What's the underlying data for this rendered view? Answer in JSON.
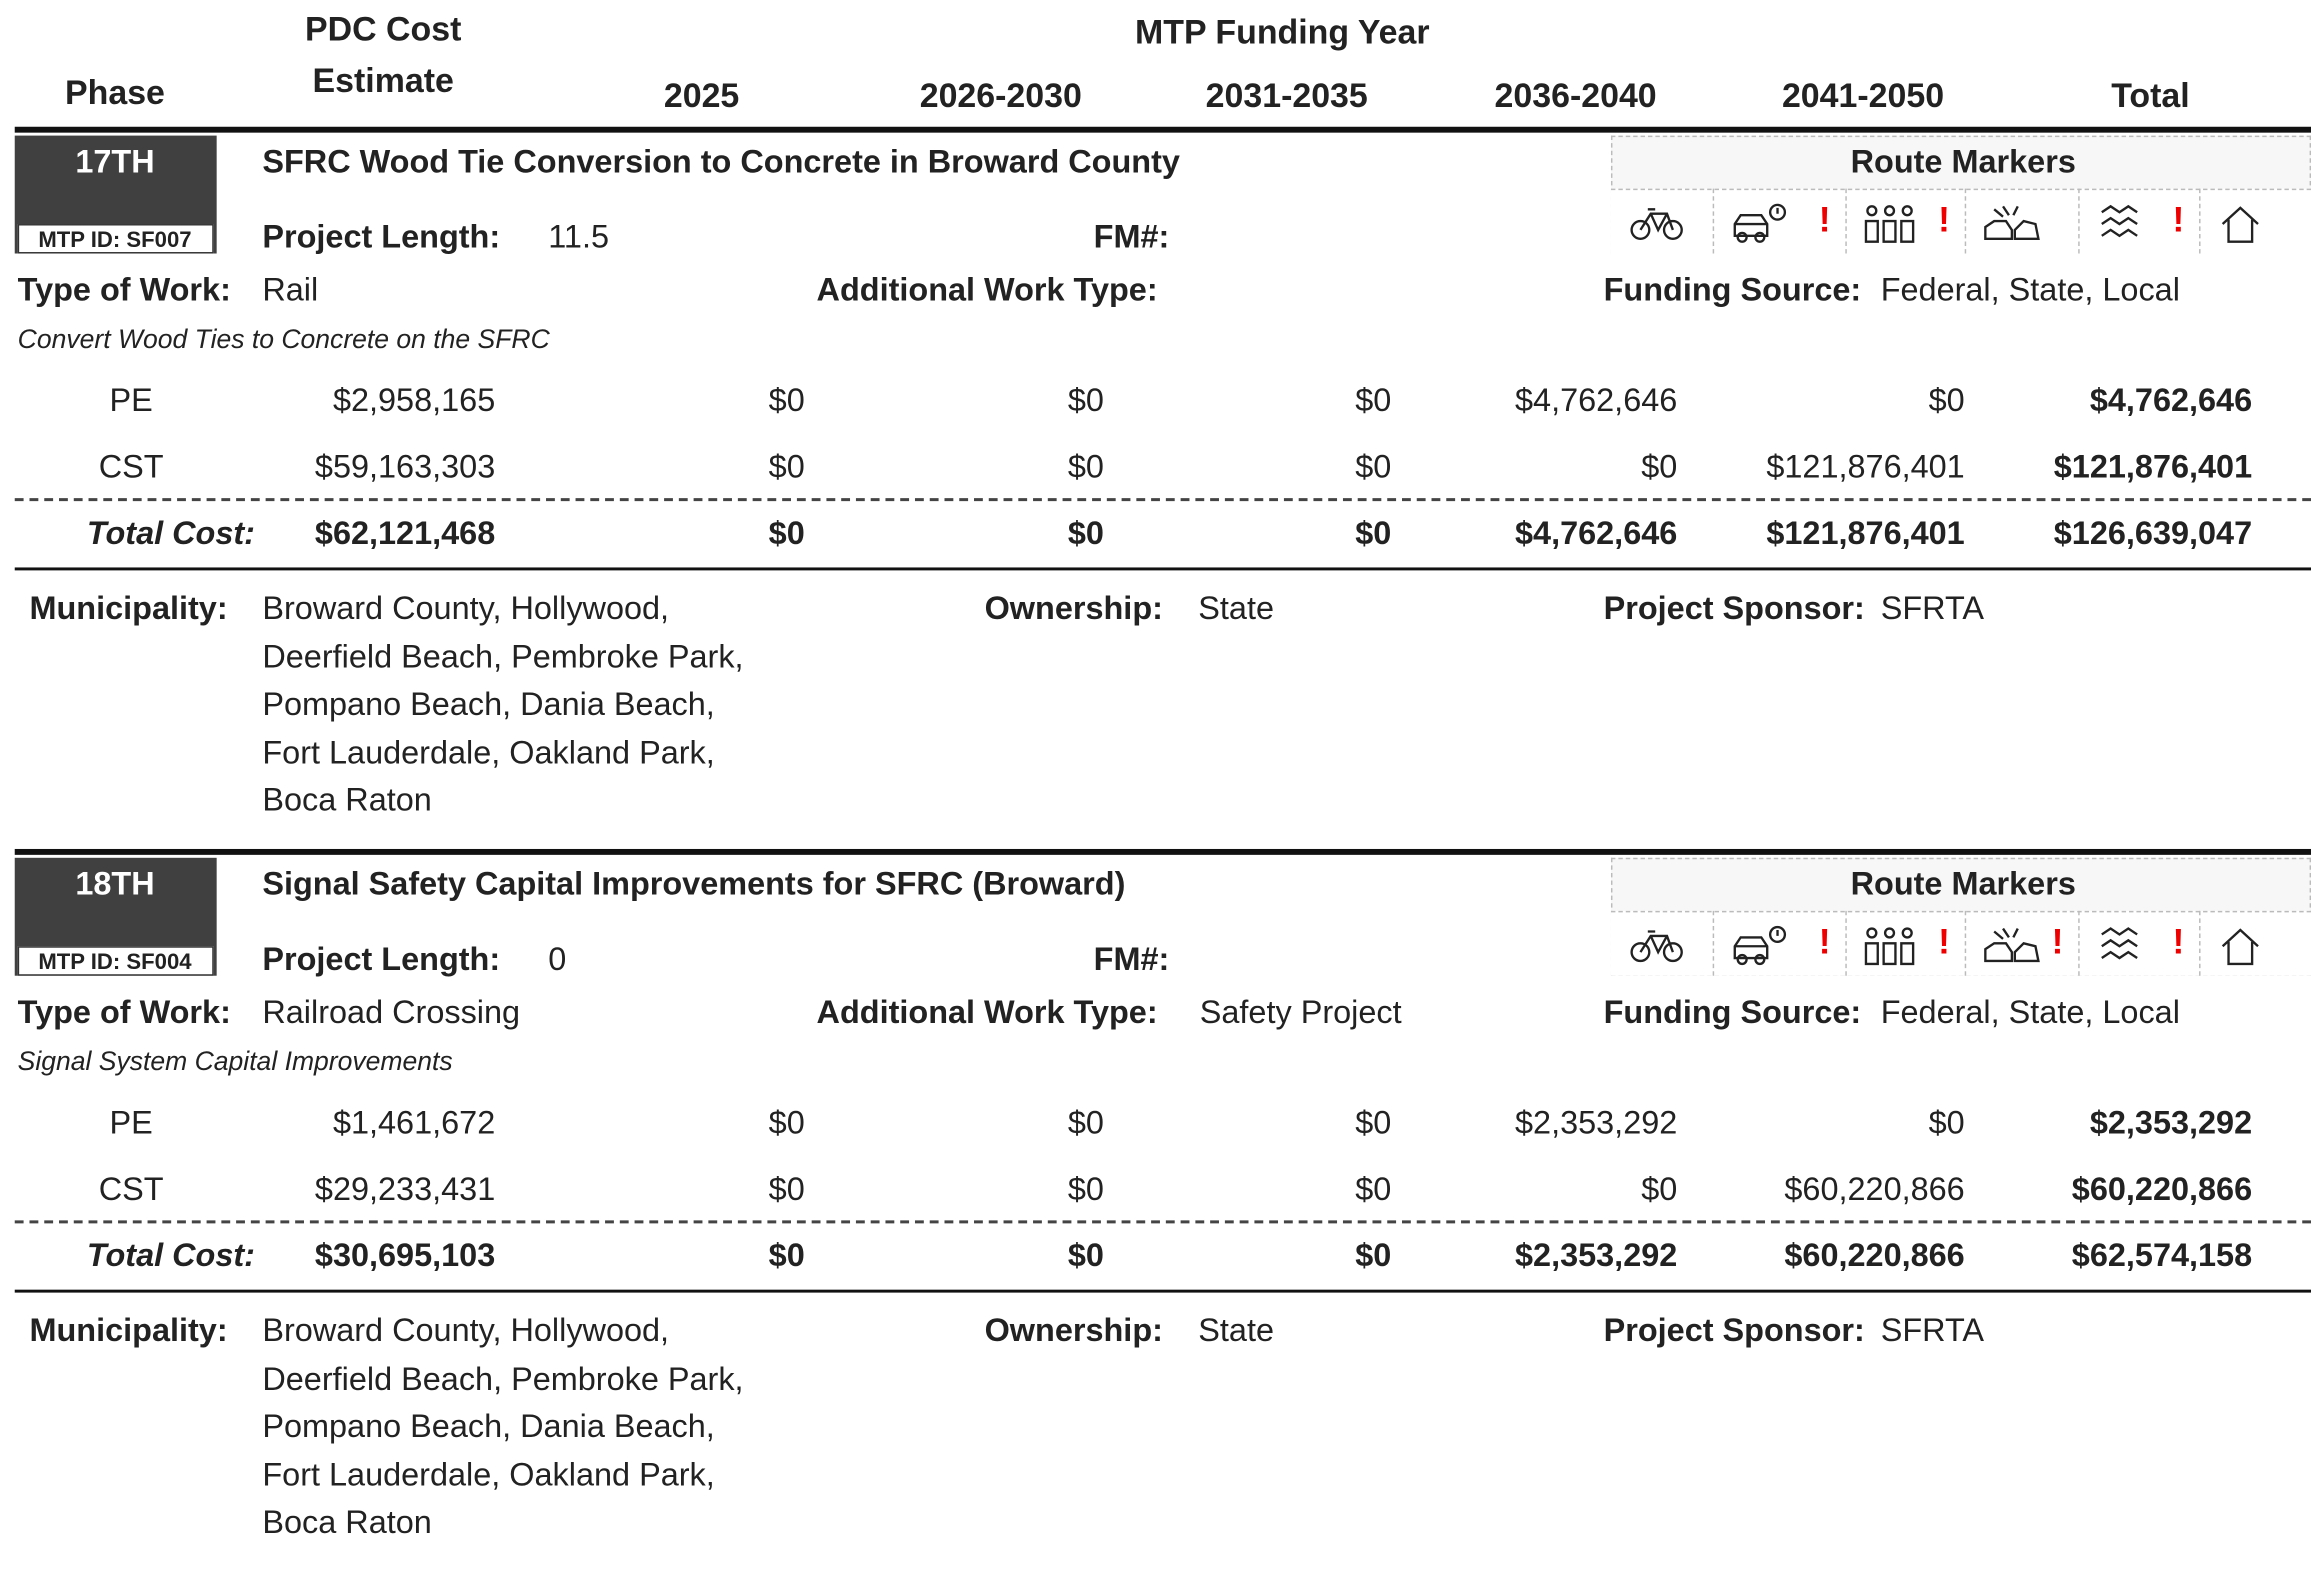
{
  "header": {
    "phase": "Phase",
    "pdc": [
      "PDC Cost",
      "Estimate"
    ],
    "mtp": "MTP Funding Year",
    "years": [
      "2025",
      "2026-2030",
      "2031-2035",
      "2036-2040",
      "2041-2050",
      "Total"
    ]
  },
  "labels": {
    "project_length": "Project Length:",
    "fm": "FM#:",
    "type_of_work": "Type of Work:",
    "additional": "Additional Work Type:",
    "funding": "Funding Source:",
    "total_cost": "Total Cost:",
    "municipality": "Municipality:",
    "ownership": "Ownership:",
    "sponsor": "Project Sponsor:",
    "route_markers": "Route Markers"
  },
  "projects": [
    {
      "rank": "17TH",
      "mtp_id": "MTP ID: SF007",
      "title": "SFRC Wood Tie Conversion to Concrete in Broward County",
      "project_length": 11.5,
      "type_of_work": "Rail",
      "funding_source": "Federal, State, Local",
      "description": "Convert Wood Ties to Concrete on the SFRC",
      "rows": [
        {
          "phase": "PE",
          "cells": [
            "$2,958,165",
            "$0",
            "$0",
            "$0",
            "$4,762,646",
            "$0",
            "$4,762,646"
          ]
        },
        {
          "phase": "CST",
          "cells": [
            "$59,163,303",
            "$0",
            "$0",
            "$0",
            "$0",
            "$121,876,401",
            "$121,876,401"
          ]
        }
      ],
      "total": [
        "$62,121,468",
        "$0",
        "$0",
        "$0",
        "$4,762,646",
        "$121,876,401",
        "$126,639,047"
      ],
      "municipality": [
        "Broward County, Hollywood,",
        "Deerfield Beach, Pembroke Park,",
        "Pompano Beach, Dania Beach,",
        "Fort Lauderdale, Oakland Park,",
        "Boca Raton"
      ],
      "ownership": "State",
      "sponsor": "SFRTA",
      "alerts": [
        null,
        "!",
        "!",
        null,
        "!",
        null
      ]
    },
    {
      "rank": "18TH",
      "mtp_id": "MTP ID: SF004",
      "title": "Signal Safety Capital Improvements for SFRC (Broward)",
      "project_length": 0,
      "type_of_work": "Railroad Crossing",
      "additional_work_type": "Safety Project",
      "funding_source": "Federal, State, Local",
      "description": "Signal System Capital Improvements",
      "rows": [
        {
          "phase": "PE",
          "cells": [
            "$1,461,672",
            "$0",
            "$0",
            "$0",
            "$2,353,292",
            "$0",
            "$2,353,292"
          ]
        },
        {
          "phase": "CST",
          "cells": [
            "$29,233,431",
            "$0",
            "$0",
            "$0",
            "$0",
            "$60,220,866",
            "$60,220,866"
          ]
        }
      ],
      "total": [
        "$30,695,103",
        "$0",
        "$0",
        "$0",
        "$2,353,292",
        "$60,220,866",
        "$62,574,158"
      ],
      "municipality": [
        "Broward County, Hollywood,",
        "Deerfield Beach, Pembroke Park,",
        "Pompano Beach, Dania Beach,",
        "Fort Lauderdale, Oakland Park,",
        "Boca Raton"
      ],
      "ownership": "State",
      "sponsor": "SFRTA",
      "alerts": [
        null,
        "!",
        "!",
        "!",
        "!",
        null
      ]
    }
  ]
}
